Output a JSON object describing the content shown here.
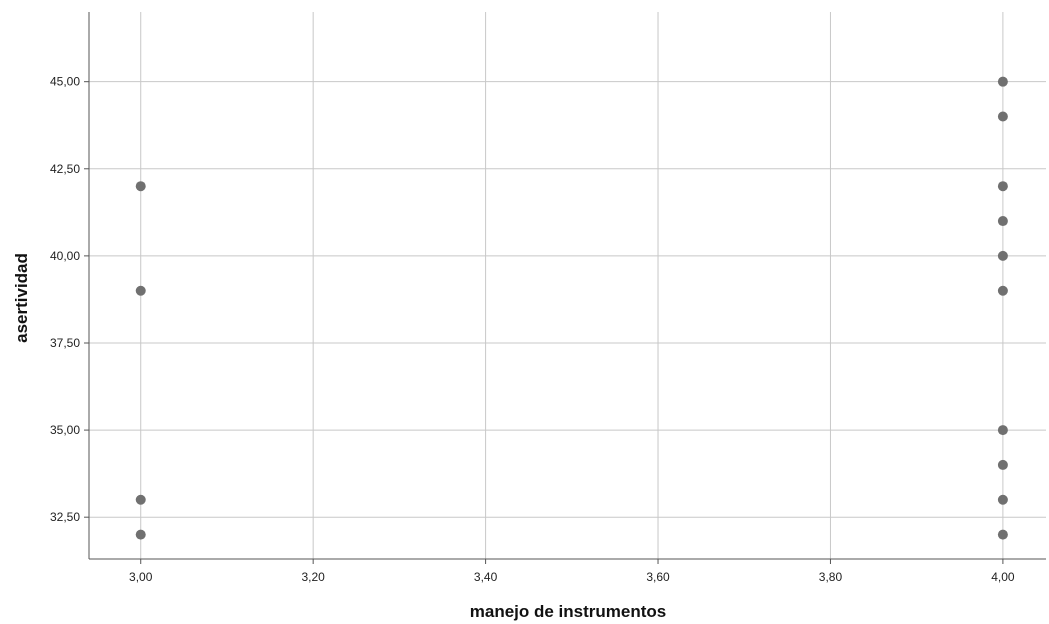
{
  "chart_data": {
    "type": "scatter",
    "xlabel": "manejo de instrumentos",
    "ylabel": "asertividad",
    "xlim": [
      2.94,
      4.05
    ],
    "ylim": [
      31.3,
      47.0
    ],
    "x_ticks": [
      3.0,
      3.2,
      3.4,
      3.6,
      3.8,
      4.0
    ],
    "x_tick_labels": [
      "3,00",
      "3,20",
      "3,40",
      "3,60",
      "3,80",
      "4,00"
    ],
    "y_ticks": [
      32.5,
      35.0,
      37.5,
      40.0,
      42.5,
      45.0
    ],
    "y_tick_labels": [
      "32,50",
      "35,00",
      "37,50",
      "40,00",
      "42,50",
      "45,00"
    ],
    "grid": true,
    "marker_color": "#707070",
    "points": [
      {
        "x": 3.0,
        "y": 42
      },
      {
        "x": 3.0,
        "y": 39
      },
      {
        "x": 3.0,
        "y": 33
      },
      {
        "x": 3.0,
        "y": 32
      },
      {
        "x": 4.0,
        "y": 45
      },
      {
        "x": 4.0,
        "y": 44
      },
      {
        "x": 4.0,
        "y": 42
      },
      {
        "x": 4.0,
        "y": 41
      },
      {
        "x": 4.0,
        "y": 40
      },
      {
        "x": 4.0,
        "y": 39
      },
      {
        "x": 4.0,
        "y": 35
      },
      {
        "x": 4.0,
        "y": 34
      },
      {
        "x": 4.0,
        "y": 33
      },
      {
        "x": 4.0,
        "y": 32
      }
    ]
  }
}
